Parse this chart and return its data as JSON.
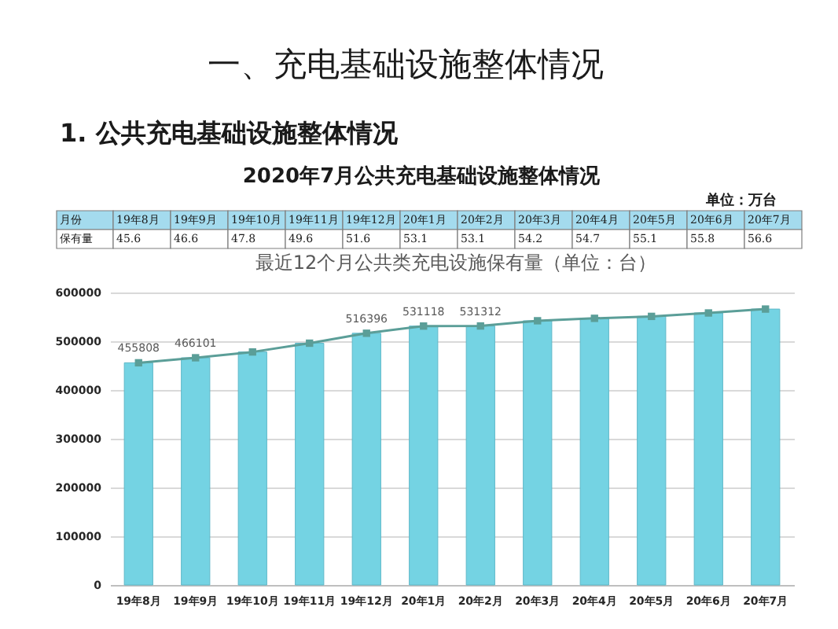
{
  "chart_data": [
    {
      "type": "other",
      "title": "2020年7月公共充电基础设施整体情况",
      "annotations": [
        "一、充电基础设施整体情况",
        "1. 公共充电基础设施整体情况",
        "单位：万台"
      ],
      "xlabel": "月份",
      "ylabel": "保有量",
      "categories": [
        "19年8月",
        "19年9月",
        "19年10月",
        "19年11月",
        "19年12月",
        "20年1月",
        "20年2月",
        "20年3月",
        "20年4月",
        "20年5月",
        "20年6月",
        "20年7月"
      ],
      "values": [
        45.6,
        46.6,
        47.8,
        49.6,
        51.6,
        53.1,
        53.1,
        54.2,
        54.7,
        55.1,
        55.8,
        56.6
      ],
      "data_labels": true
    },
    {
      "type": "bar",
      "title": "最近12个月公共类充电设施保有量（单位：台）",
      "categories": [
        "19年8月",
        "19年9月",
        "19年10月",
        "19年11月",
        "19年12月",
        "20年1月",
        "20年2月",
        "20年3月",
        "20年4月",
        "20年5月",
        "20年6月",
        "20年7月"
      ],
      "ylim": [
        0,
        600000
      ],
      "yticks": [
        0,
        100000,
        200000,
        300000,
        400000,
        500000,
        600000
      ],
      "grid": "y",
      "series": [
        {
          "type": "bar",
          "color": "#74d3e3",
          "values": [
            455808,
            466101,
            478000,
            496000,
            516396,
            531118,
            531312,
            542000,
            547000,
            551000,
            558000,
            566000
          ]
        },
        {
          "type": "line",
          "color": "#5b9e98",
          "marker": "square",
          "values": [
            455808,
            466101,
            478000,
            496000,
            516396,
            531118,
            531312,
            542000,
            547000,
            551000,
            558000,
            566000
          ],
          "value_labels": [
            "455808",
            "466101",
            null,
            null,
            "516396",
            "531118",
            "531312",
            null,
            null,
            null,
            null,
            null
          ]
        }
      ]
    }
  ]
}
